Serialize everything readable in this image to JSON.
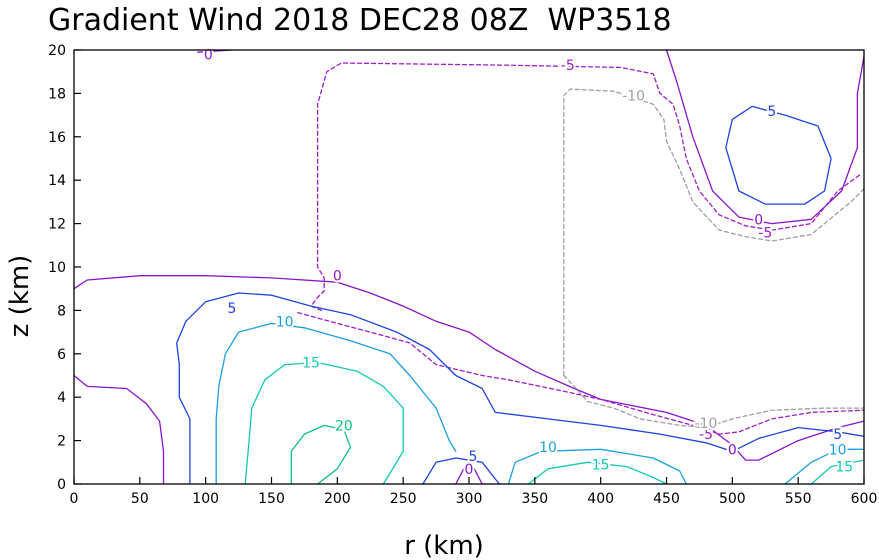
{
  "chart_data": {
    "type": "contour",
    "title": "Gradient Wind 2018 DEC28 08Z  WP3518",
    "xlabel": "r (km)",
    "ylabel": "z (km)",
    "xlim": [
      0,
      600
    ],
    "ylim": [
      0,
      20
    ],
    "xticks": [
      0,
      50,
      100,
      150,
      200,
      250,
      300,
      350,
      400,
      450,
      500,
      550,
      600
    ],
    "yticks": [
      0,
      2,
      4,
      6,
      8,
      10,
      12,
      14,
      16,
      18,
      20
    ],
    "levels": [
      {
        "value": -10,
        "color": "#a0a0a0",
        "dashed": true
      },
      {
        "value": -5,
        "color": "#a020c8",
        "dashed": true
      },
      {
        "value": 0,
        "color": "#8a16c8",
        "dashed": false
      },
      {
        "value": 5,
        "color": "#1e44dc",
        "dashed": false
      },
      {
        "value": 10,
        "color": "#1aa0e0",
        "dashed": false
      },
      {
        "value": 15,
        "color": "#14c8b4",
        "dashed": false
      },
      {
        "value": 20,
        "color": "#10c080",
        "dashed": false
      }
    ],
    "contours": [
      {
        "level": 0,
        "points": [
          [
            0,
            9.0
          ],
          [
            10,
            9.4
          ],
          [
            50,
            9.6
          ],
          [
            100,
            9.6
          ],
          [
            150,
            9.5
          ],
          [
            200,
            9.3
          ],
          [
            225,
            8.8
          ],
          [
            250,
            8.2
          ],
          [
            275,
            7.5
          ],
          [
            300,
            7.0
          ],
          [
            320,
            6.2
          ],
          [
            350,
            5.2
          ],
          [
            380,
            4.4
          ],
          [
            400,
            3.9
          ],
          [
            450,
            3.3
          ],
          [
            480,
            2.7
          ],
          [
            500,
            1.8
          ],
          [
            510,
            1.1
          ],
          [
            520,
            1.1
          ],
          [
            550,
            2.0
          ],
          [
            580,
            2.6
          ],
          [
            600,
            2.9
          ]
        ]
      },
      {
        "level": 0,
        "points": [
          [
            0,
            5.0
          ],
          [
            10,
            4.5
          ],
          [
            40,
            4.4
          ],
          [
            55,
            3.7
          ],
          [
            65,
            2.9
          ],
          [
            68,
            1.5
          ],
          [
            68,
            0
          ]
        ]
      },
      {
        "level": 0,
        "points": [
          [
            290,
            0
          ],
          [
            296,
            0.7
          ],
          [
            304,
            0.7
          ],
          [
            310,
            0
          ]
        ]
      },
      {
        "level": 0,
        "points": [
          [
            94,
            19.9
          ],
          [
            120,
            20
          ]
        ]
      },
      {
        "level": 0,
        "points": [
          [
            450,
            20
          ],
          [
            458,
            18.5
          ],
          [
            470,
            16.0
          ],
          [
            485,
            13.5
          ],
          [
            505,
            12.3
          ],
          [
            530,
            12.0
          ],
          [
            560,
            12.2
          ],
          [
            583,
            13.5
          ],
          [
            595,
            15.5
          ],
          [
            595,
            18.0
          ],
          [
            600,
            19.7
          ]
        ]
      },
      {
        "level": -5,
        "points": [
          [
            330,
            4.8
          ],
          [
            370,
            4.3
          ],
          [
            400,
            3.9
          ],
          [
            440,
            3.2
          ],
          [
            470,
            2.7
          ],
          [
            490,
            2.3
          ],
          [
            505,
            2.4
          ],
          [
            530,
            3.0
          ],
          [
            560,
            3.3
          ],
          [
            600,
            3.4
          ]
        ]
      },
      {
        "level": -5,
        "points": [
          [
            170,
            7.9
          ],
          [
            200,
            7.4
          ],
          [
            225,
            7.0
          ],
          [
            255,
            6.5
          ],
          [
            265,
            6.0
          ],
          [
            275,
            5.5
          ],
          [
            310,
            5.0
          ],
          [
            330,
            4.8
          ]
        ]
      },
      {
        "level": -5,
        "points": [
          [
            188,
            8.0
          ],
          [
            180,
            8.2
          ],
          [
            185,
            8.6
          ],
          [
            190,
            8.9
          ],
          [
            190,
            9.5
          ],
          [
            185,
            10.0
          ],
          [
            185,
            17.5
          ],
          [
            192,
            19.0
          ],
          [
            203,
            19.4
          ],
          [
            330,
            19.3
          ],
          [
            415,
            19.2
          ],
          [
            440,
            18.9
          ],
          [
            445,
            18.0
          ],
          [
            455,
            17.5
          ],
          [
            460,
            16.5
          ],
          [
            465,
            15.0
          ],
          [
            475,
            13.5
          ],
          [
            490,
            12.4
          ],
          [
            510,
            11.9
          ],
          [
            530,
            11.7
          ],
          [
            560,
            12.0
          ],
          [
            580,
            13.5
          ],
          [
            598,
            14.3
          ]
        ]
      },
      {
        "level": -10,
        "points": [
          [
            372,
            5.0
          ],
          [
            372,
            17.9
          ],
          [
            377,
            18.2
          ],
          [
            410,
            18.1
          ],
          [
            440,
            17.5
          ],
          [
            448,
            16.8
          ],
          [
            450,
            15.8
          ],
          [
            460,
            14.5
          ],
          [
            470,
            13.0
          ],
          [
            490,
            11.7
          ],
          [
            510,
            11.4
          ],
          [
            530,
            11.2
          ],
          [
            560,
            11.5
          ],
          [
            590,
            13.0
          ],
          [
            600,
            13.6
          ]
        ]
      },
      {
        "level": -10,
        "points": [
          [
            372,
            5.0
          ],
          [
            380,
            4.5
          ],
          [
            390,
            3.8
          ],
          [
            410,
            3.5
          ],
          [
            430,
            3.0
          ],
          [
            460,
            2.7
          ],
          [
            480,
            2.6
          ],
          [
            500,
            3.0
          ],
          [
            530,
            3.4
          ],
          [
            570,
            3.5
          ],
          [
            600,
            3.5
          ]
        ]
      },
      {
        "level": 5,
        "points": [
          [
            88,
            0
          ],
          [
            88,
            3.0
          ],
          [
            80,
            4.0
          ],
          [
            80,
            5.5
          ],
          [
            78,
            6.5
          ],
          [
            85,
            7.5
          ],
          [
            100,
            8.4
          ],
          [
            125,
            8.8
          ],
          [
            150,
            8.7
          ],
          [
            180,
            8.2
          ],
          [
            210,
            7.8
          ],
          [
            245,
            7.0
          ],
          [
            270,
            6.2
          ],
          [
            290,
            5.0
          ],
          [
            310,
            4.4
          ],
          [
            320,
            3.3
          ],
          [
            360,
            3.0
          ],
          [
            400,
            2.7
          ],
          [
            445,
            2.3
          ],
          [
            480,
            1.9
          ],
          [
            500,
            1.5
          ],
          [
            520,
            2.1
          ],
          [
            550,
            2.6
          ],
          [
            580,
            2.4
          ],
          [
            600,
            2.2
          ]
        ]
      },
      {
        "level": 5,
        "points": [
          [
            265,
            0
          ],
          [
            275,
            1.0
          ],
          [
            290,
            1.2
          ],
          [
            310,
            1.0
          ],
          [
            323,
            0
          ]
        ]
      },
      {
        "level": 5,
        "points": [
          [
            495,
            15.5
          ],
          [
            500,
            16.8
          ],
          [
            515,
            17.4
          ],
          [
            540,
            17.0
          ],
          [
            565,
            16.5
          ],
          [
            575,
            15.0
          ],
          [
            570,
            13.5
          ],
          [
            555,
            12.9
          ],
          [
            525,
            12.9
          ],
          [
            505,
            13.5
          ],
          [
            495,
            15.5
          ]
        ]
      },
      {
        "level": 10,
        "points": [
          [
            108,
            0
          ],
          [
            108,
            3.0
          ],
          [
            110,
            4.5
          ],
          [
            115,
            6.0
          ],
          [
            125,
            7.0
          ],
          [
            150,
            7.4
          ],
          [
            175,
            7.2
          ],
          [
            210,
            6.6
          ],
          [
            240,
            6.0
          ],
          [
            255,
            5.0
          ],
          [
            275,
            3.5
          ],
          [
            285,
            2.0
          ],
          [
            290,
            1.5
          ]
        ]
      },
      {
        "level": 10,
        "points": [
          [
            330,
            0
          ],
          [
            335,
            1.0
          ],
          [
            355,
            1.5
          ],
          [
            400,
            1.6
          ],
          [
            440,
            1.2
          ],
          [
            460,
            0.6
          ],
          [
            465,
            0
          ]
        ]
      },
      {
        "level": 10,
        "points": [
          [
            540,
            0
          ],
          [
            560,
            1.0
          ],
          [
            580,
            1.6
          ],
          [
            600,
            1.6
          ]
        ]
      },
      {
        "level": 15,
        "points": [
          [
            130,
            0
          ],
          [
            133,
            2.0
          ],
          [
            135,
            3.5
          ],
          [
            145,
            4.8
          ],
          [
            160,
            5.5
          ],
          [
            185,
            5.6
          ],
          [
            215,
            5.2
          ],
          [
            235,
            4.5
          ],
          [
            250,
            3.5
          ],
          [
            250,
            1.5
          ],
          [
            240,
            0.5
          ],
          [
            235,
            0
          ]
        ]
      },
      {
        "level": 15,
        "points": [
          [
            345,
            0
          ],
          [
            360,
            0.7
          ],
          [
            390,
            1.0
          ],
          [
            420,
            0.8
          ],
          [
            440,
            0.3
          ],
          [
            450,
            0
          ]
        ]
      },
      {
        "level": 15,
        "points": [
          [
            560,
            0
          ],
          [
            575,
            0.8
          ],
          [
            600,
            1.1
          ]
        ]
      },
      {
        "level": 20,
        "points": [
          [
            165,
            0
          ],
          [
            165,
            1.5
          ],
          [
            175,
            2.3
          ],
          [
            190,
            2.7
          ],
          [
            205,
            2.5
          ],
          [
            210,
            1.7
          ],
          [
            200,
            0.7
          ],
          [
            185,
            0
          ]
        ]
      }
    ],
    "contour_labels": [
      {
        "text": "0",
        "x": 200,
        "y": 9.6,
        "level": 0
      },
      {
        "text": "0",
        "x": 102,
        "y": 19.8,
        "level": 0
      },
      {
        "text": "0",
        "x": 300,
        "y": 0.7,
        "level": 0
      },
      {
        "text": "0",
        "x": 500,
        "y": 1.6,
        "level": 0
      },
      {
        "text": "0",
        "x": 520,
        "y": 12.2,
        "level": 0
      },
      {
        "text": "-5",
        "x": 375,
        "y": 19.3,
        "level": -5
      },
      {
        "text": "-5",
        "x": 525,
        "y": 11.6,
        "level": -5
      },
      {
        "text": "-5",
        "x": 480,
        "y": 2.3,
        "level": -5
      },
      {
        "text": "-10",
        "x": 425,
        "y": 17.9,
        "level": -10
      },
      {
        "text": "-10",
        "x": 480,
        "y": 2.8,
        "level": -10
      },
      {
        "text": "5",
        "x": 120,
        "y": 8.1,
        "level": 5
      },
      {
        "text": "5",
        "x": 303,
        "y": 1.3,
        "level": 5
      },
      {
        "text": "5",
        "x": 530,
        "y": 17.2,
        "level": 5
      },
      {
        "text": "5",
        "x": 580,
        "y": 2.3,
        "level": 5
      },
      {
        "text": "10",
        "x": 160,
        "y": 7.5,
        "level": 10
      },
      {
        "text": "10",
        "x": 360,
        "y": 1.7,
        "level": 10
      },
      {
        "text": "10",
        "x": 580,
        "y": 1.6,
        "level": 10
      },
      {
        "text": "15",
        "x": 180,
        "y": 5.6,
        "level": 15
      },
      {
        "text": "15",
        "x": 400,
        "y": 0.9,
        "level": 15
      },
      {
        "text": "15",
        "x": 585,
        "y": 0.8,
        "level": 15
      },
      {
        "text": "20",
        "x": 205,
        "y": 2.7,
        "level": 20
      }
    ]
  }
}
